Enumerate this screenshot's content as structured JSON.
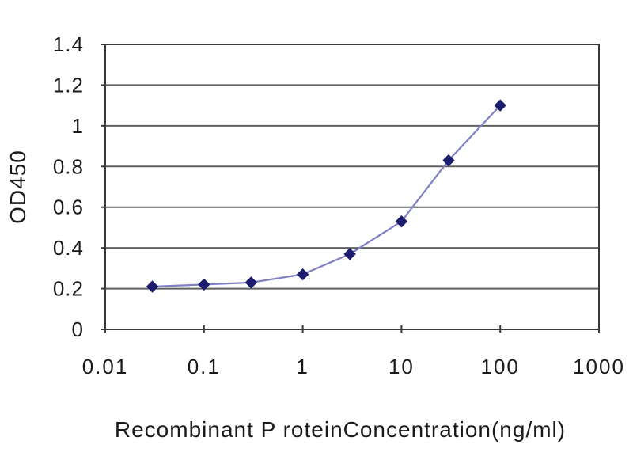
{
  "chart_data": {
    "type": "line",
    "title": "",
    "xlabel": "Recombinant P roteinConcentration(ng/ml)",
    "ylabel": "OD450",
    "x_scale": "log",
    "xlim": [
      0.01,
      1000
    ],
    "ylim": [
      0,
      1.4
    ],
    "x_ticks": [
      0.01,
      0.1,
      1,
      10,
      100,
      1000
    ],
    "x_tick_labels": [
      "0.01",
      "0.1",
      "1",
      "10",
      "100",
      "1000"
    ],
    "y_ticks": [
      0,
      0.2,
      0.4,
      0.6,
      0.8,
      1.0,
      1.2,
      1.4
    ],
    "y_tick_labels": [
      "0",
      "0.2",
      "0.4",
      "0.6",
      "0.8",
      "1",
      "1.2",
      "1.4"
    ],
    "grid": "horizontal",
    "legend": "none",
    "series": [
      {
        "name": "OD450",
        "marker": "diamond",
        "line_color": "#8080c4",
        "marker_color": "#1c1c6e",
        "points": [
          {
            "x": 0.03,
            "y": 0.21
          },
          {
            "x": 0.1,
            "y": 0.22
          },
          {
            "x": 0.3,
            "y": 0.23
          },
          {
            "x": 1,
            "y": 0.27
          },
          {
            "x": 3,
            "y": 0.37
          },
          {
            "x": 10,
            "y": 0.53
          },
          {
            "x": 30,
            "y": 0.83
          },
          {
            "x": 100,
            "y": 1.1
          }
        ]
      }
    ],
    "colors": {
      "gridline": "#606060",
      "axis": "#3a3a3a",
      "text": "#1a1a1a",
      "background": "#ffffff"
    }
  }
}
